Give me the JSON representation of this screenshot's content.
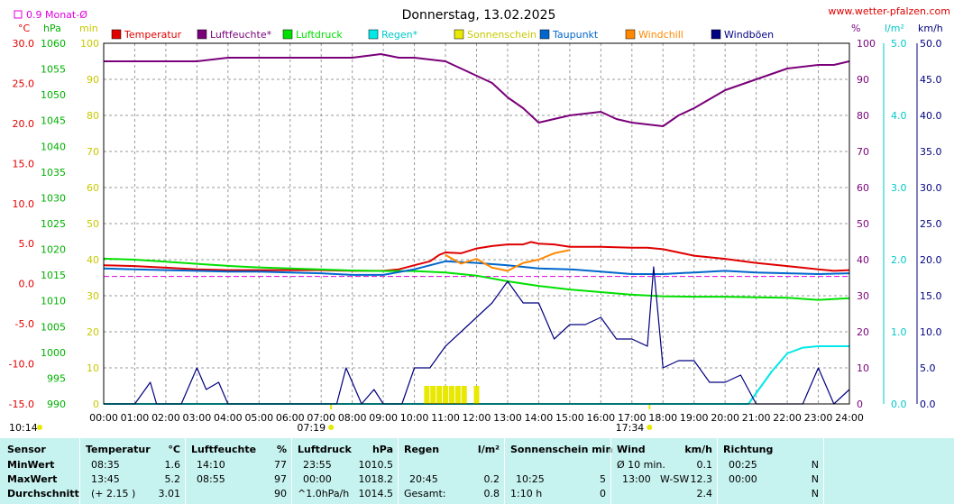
{
  "header": {
    "title": "Donnerstag, 13.02.2025",
    "site": "www.wetter-pfalzen.com",
    "monthly_avg_label": "0.9 Monat-Ø"
  },
  "axes": {
    "left_units": [
      "°C",
      "hPa",
      "min"
    ],
    "right_units": [
      "%",
      "l/m²",
      "km/h"
    ],
    "temp_ticks": [
      "30.0",
      "25.0",
      "20.0",
      "15.0",
      "10.0",
      "5.0",
      "0.0",
      "-5.0",
      "-10.0",
      "-15.0"
    ],
    "hpa_ticks": [
      "1060",
      "1055",
      "1050",
      "1045",
      "1040",
      "1035",
      "1030",
      "1025",
      "1020",
      "1015",
      "1010",
      "1005",
      "1000",
      "995",
      "990"
    ],
    "min_ticks": [
      "100",
      "90",
      "80",
      "70",
      "60",
      "50",
      "40",
      "30",
      "20",
      "10",
      "0"
    ],
    "pct_ticks": [
      "100",
      "90",
      "80",
      "70",
      "60",
      "50",
      "40",
      "30",
      "20",
      "10",
      "0"
    ],
    "rain_ticks": [
      "5.0",
      "4.0",
      "3.0",
      "2.0",
      "1.0",
      "0.0"
    ],
    "wind_ticks": [
      "50.0",
      "45.0",
      "40.0",
      "35.0",
      "30.0",
      "25.0",
      "20.0",
      "15.0",
      "10.0",
      "5.0",
      "0.0"
    ],
    "x_ticks": [
      "00:00",
      "01:00",
      "02:00",
      "03:00",
      "04:00",
      "05:00",
      "06:00",
      "07:00",
      "08:00",
      "09:00",
      "10:00",
      "11:00",
      "12:00",
      "13:00",
      "14:00",
      "15:00",
      "16:00",
      "17:00",
      "18:00",
      "19:00",
      "20:00",
      "21:00",
      "22:00",
      "23:00",
      "24:00"
    ],
    "sunrise": "07:19",
    "noon": "10:14",
    "sunset": "17:34"
  },
  "chart_data": {
    "type": "line",
    "x_unit": "hour of day",
    "xlim": [
      0,
      24
    ],
    "series": [
      {
        "name": "Temperatur",
        "color": "#e00000",
        "axis": "°C",
        "x": [
          0,
          1,
          2,
          3,
          4,
          5,
          6,
          7,
          8,
          9,
          9.5,
          10,
          10.5,
          10.8,
          11,
          11.5,
          12,
          12.5,
          13,
          13.5,
          13.75,
          14,
          14.5,
          15,
          16,
          17,
          17.5,
          18,
          19,
          20,
          21,
          22,
          23,
          23.5,
          24
        ],
        "y": [
          2.3,
          2.2,
          2.0,
          1.8,
          1.7,
          1.7,
          1.7,
          1.7,
          1.6,
          1.6,
          1.8,
          2.3,
          2.8,
          3.6,
          3.9,
          3.8,
          4.4,
          4.7,
          4.9,
          4.9,
          5.2,
          5.0,
          4.9,
          4.6,
          4.6,
          4.5,
          4.5,
          4.3,
          3.5,
          3.1,
          2.6,
          2.2,
          1.8,
          1.6,
          1.7
        ]
      },
      {
        "name": "Luftfeuchte*",
        "color": "#7a007a",
        "axis": "%",
        "x": [
          0,
          1,
          2,
          3,
          4,
          5,
          6,
          7,
          8,
          8.92,
          9.5,
          10,
          11,
          11.5,
          12,
          12.5,
          13,
          13.5,
          14,
          14.5,
          15,
          16,
          16.5,
          17,
          18,
          18.5,
          19,
          20,
          21,
          22,
          23,
          23.5,
          24
        ],
        "y": [
          95,
          95,
          95,
          95,
          96,
          96,
          96,
          96,
          96,
          97,
          96,
          96,
          95,
          93,
          91,
          89,
          85,
          82,
          78,
          79,
          80,
          81,
          79,
          78,
          77,
          80,
          82,
          87,
          90,
          93,
          94,
          94,
          95
        ]
      },
      {
        "name": "Luftdruck",
        "color": "#00e000",
        "axis": "hPa",
        "x": [
          0,
          1,
          2,
          3,
          4,
          5,
          6,
          7,
          8,
          9,
          10,
          11,
          12,
          13,
          14,
          15,
          16,
          17,
          18,
          19,
          20,
          21,
          22,
          23,
          23.92,
          24
        ],
        "y": [
          1018.2,
          1018.0,
          1017.6,
          1017.2,
          1016.8,
          1016.5,
          1016.3,
          1016.1,
          1015.9,
          1015.8,
          1015.8,
          1015.5,
          1014.9,
          1013.8,
          1012.9,
          1012.2,
          1011.7,
          1011.2,
          1010.9,
          1010.8,
          1010.8,
          1010.7,
          1010.6,
          1010.2,
          1010.5,
          1010.5
        ]
      },
      {
        "name": "Regen*",
        "color": "#00e8e8",
        "axis": "l/m²",
        "x": [
          0,
          20.75,
          21,
          21.5,
          22,
          22.5,
          23,
          24
        ],
        "y": [
          0.0,
          0.0,
          0.15,
          0.45,
          0.7,
          0.78,
          0.8,
          0.8
        ]
      },
      {
        "name": "Sonnenschein",
        "color": "#e8e800",
        "axis": "min",
        "x": [
          10.4,
          10.6,
          10.8,
          11.0,
          11.2,
          11.4,
          11.6,
          12.0
        ],
        "y": [
          5,
          5,
          5,
          5,
          5,
          5,
          5,
          5
        ]
      },
      {
        "name": "Taupunkt",
        "color": "#0066cc",
        "axis": "°C",
        "x": [
          0,
          1,
          2,
          3,
          4,
          5,
          6,
          7,
          8,
          9,
          10,
          11,
          12,
          13,
          14,
          15,
          16,
          17,
          18,
          19,
          20,
          21,
          22,
          23,
          24
        ],
        "y": [
          1.9,
          1.8,
          1.7,
          1.6,
          1.5,
          1.5,
          1.4,
          1.3,
          1.1,
          1.1,
          1.8,
          2.8,
          2.6,
          2.3,
          1.9,
          1.8,
          1.5,
          1.2,
          1.2,
          1.4,
          1.6,
          1.4,
          1.3,
          1.2,
          1.3
        ]
      },
      {
        "name": "Windchill",
        "color": "#ff8800",
        "axis": "°C",
        "x": [
          11,
          11.5,
          12,
          12.5,
          13,
          13.5,
          14,
          14.5,
          15
        ],
        "y": [
          3.6,
          2.5,
          3.1,
          2.0,
          1.6,
          2.6,
          3.0,
          3.8,
          4.2
        ]
      },
      {
        "name": "Windböen",
        "color": "#000080",
        "axis": "km/h",
        "x": [
          0,
          1,
          1.5,
          1.7,
          2,
          2.5,
          3,
          3.3,
          3.7,
          4,
          5,
          6,
          7.5,
          7.8,
          8,
          8.3,
          8.7,
          9,
          9.3,
          9.6,
          10,
          10.5,
          11,
          11.5,
          12,
          12.5,
          13,
          13.5,
          14,
          14.5,
          15,
          15.5,
          16,
          16.5,
          17,
          17.5,
          17.7,
          18,
          18.5,
          19,
          19.5,
          20,
          20.5,
          21,
          21.5,
          22,
          22.5,
          23,
          23.5,
          24
        ],
        "y": [
          0,
          0,
          3,
          0,
          0,
          0,
          5,
          2,
          3,
          0,
          0,
          0,
          0,
          5,
          3,
          0,
          2,
          0,
          0,
          0,
          5,
          5,
          8,
          10,
          12,
          14,
          17,
          14,
          14,
          9,
          11,
          11,
          12,
          9,
          9,
          8,
          19,
          5,
          6,
          6,
          3,
          3,
          4,
          0,
          0,
          0,
          0,
          5,
          0,
          2
        ]
      }
    ],
    "legend": "top"
  },
  "stats": {
    "headers": {
      "sensor": "Sensor",
      "temperatur": "Temperatur",
      "temp_unit": "°C",
      "luftfeuchte": "Luftfeuchte",
      "hum_unit": "%",
      "luftdruck": "Luftdruck",
      "press_unit": "hPa",
      "regen": "Regen",
      "rain_unit": "l/m²",
      "sonne": "Sonnenschein min",
      "wind": "Wind",
      "wind_unit": "km/h",
      "richtung": "Richtung"
    },
    "rows": [
      {
        "label": "MinWert",
        "temp_time": "08:35",
        "temp_val": "1.6",
        "hum_time": "14:10",
        "hum_val": "77",
        "press_time": "23:55",
        "press_val": "1010.5",
        "rain_time": "",
        "rain_val": "",
        "sun_time": "",
        "sun_val": "",
        "wind_time": "Ø 10 min.",
        "wind_dir": "",
        "wind_val": "0.1",
        "dir_time": "00:25",
        "dir_val": "N"
      },
      {
        "label": "MaxWert",
        "temp_time": "13:45",
        "temp_val": "5.2",
        "hum_time": "08:55",
        "hum_val": "97",
        "press_time": "00:00",
        "press_val": "1018.2",
        "rain_time": "20:45",
        "rain_val": "0.2",
        "sun_time": "10:25",
        "sun_val": "5",
        "wind_time": "13:00",
        "wind_dir": "W-SW",
        "wind_val": "12.3",
        "dir_time": "00:00",
        "dir_val": "N"
      },
      {
        "label": "Durchschnitt",
        "temp_time": "(+ 2.15 )",
        "temp_val": "3.01",
        "hum_time": "",
        "hum_val": "90",
        "press_time": "^1.0hPa/h",
        "press_val": "1014.5",
        "rain_time": "Gesamt:",
        "rain_val": "0.8",
        "sun_time": "1:10 h",
        "sun_val": "0",
        "wind_time": "",
        "wind_dir": "",
        "wind_val": "2.4",
        "dir_time": "",
        "dir_val": "N"
      }
    ]
  }
}
